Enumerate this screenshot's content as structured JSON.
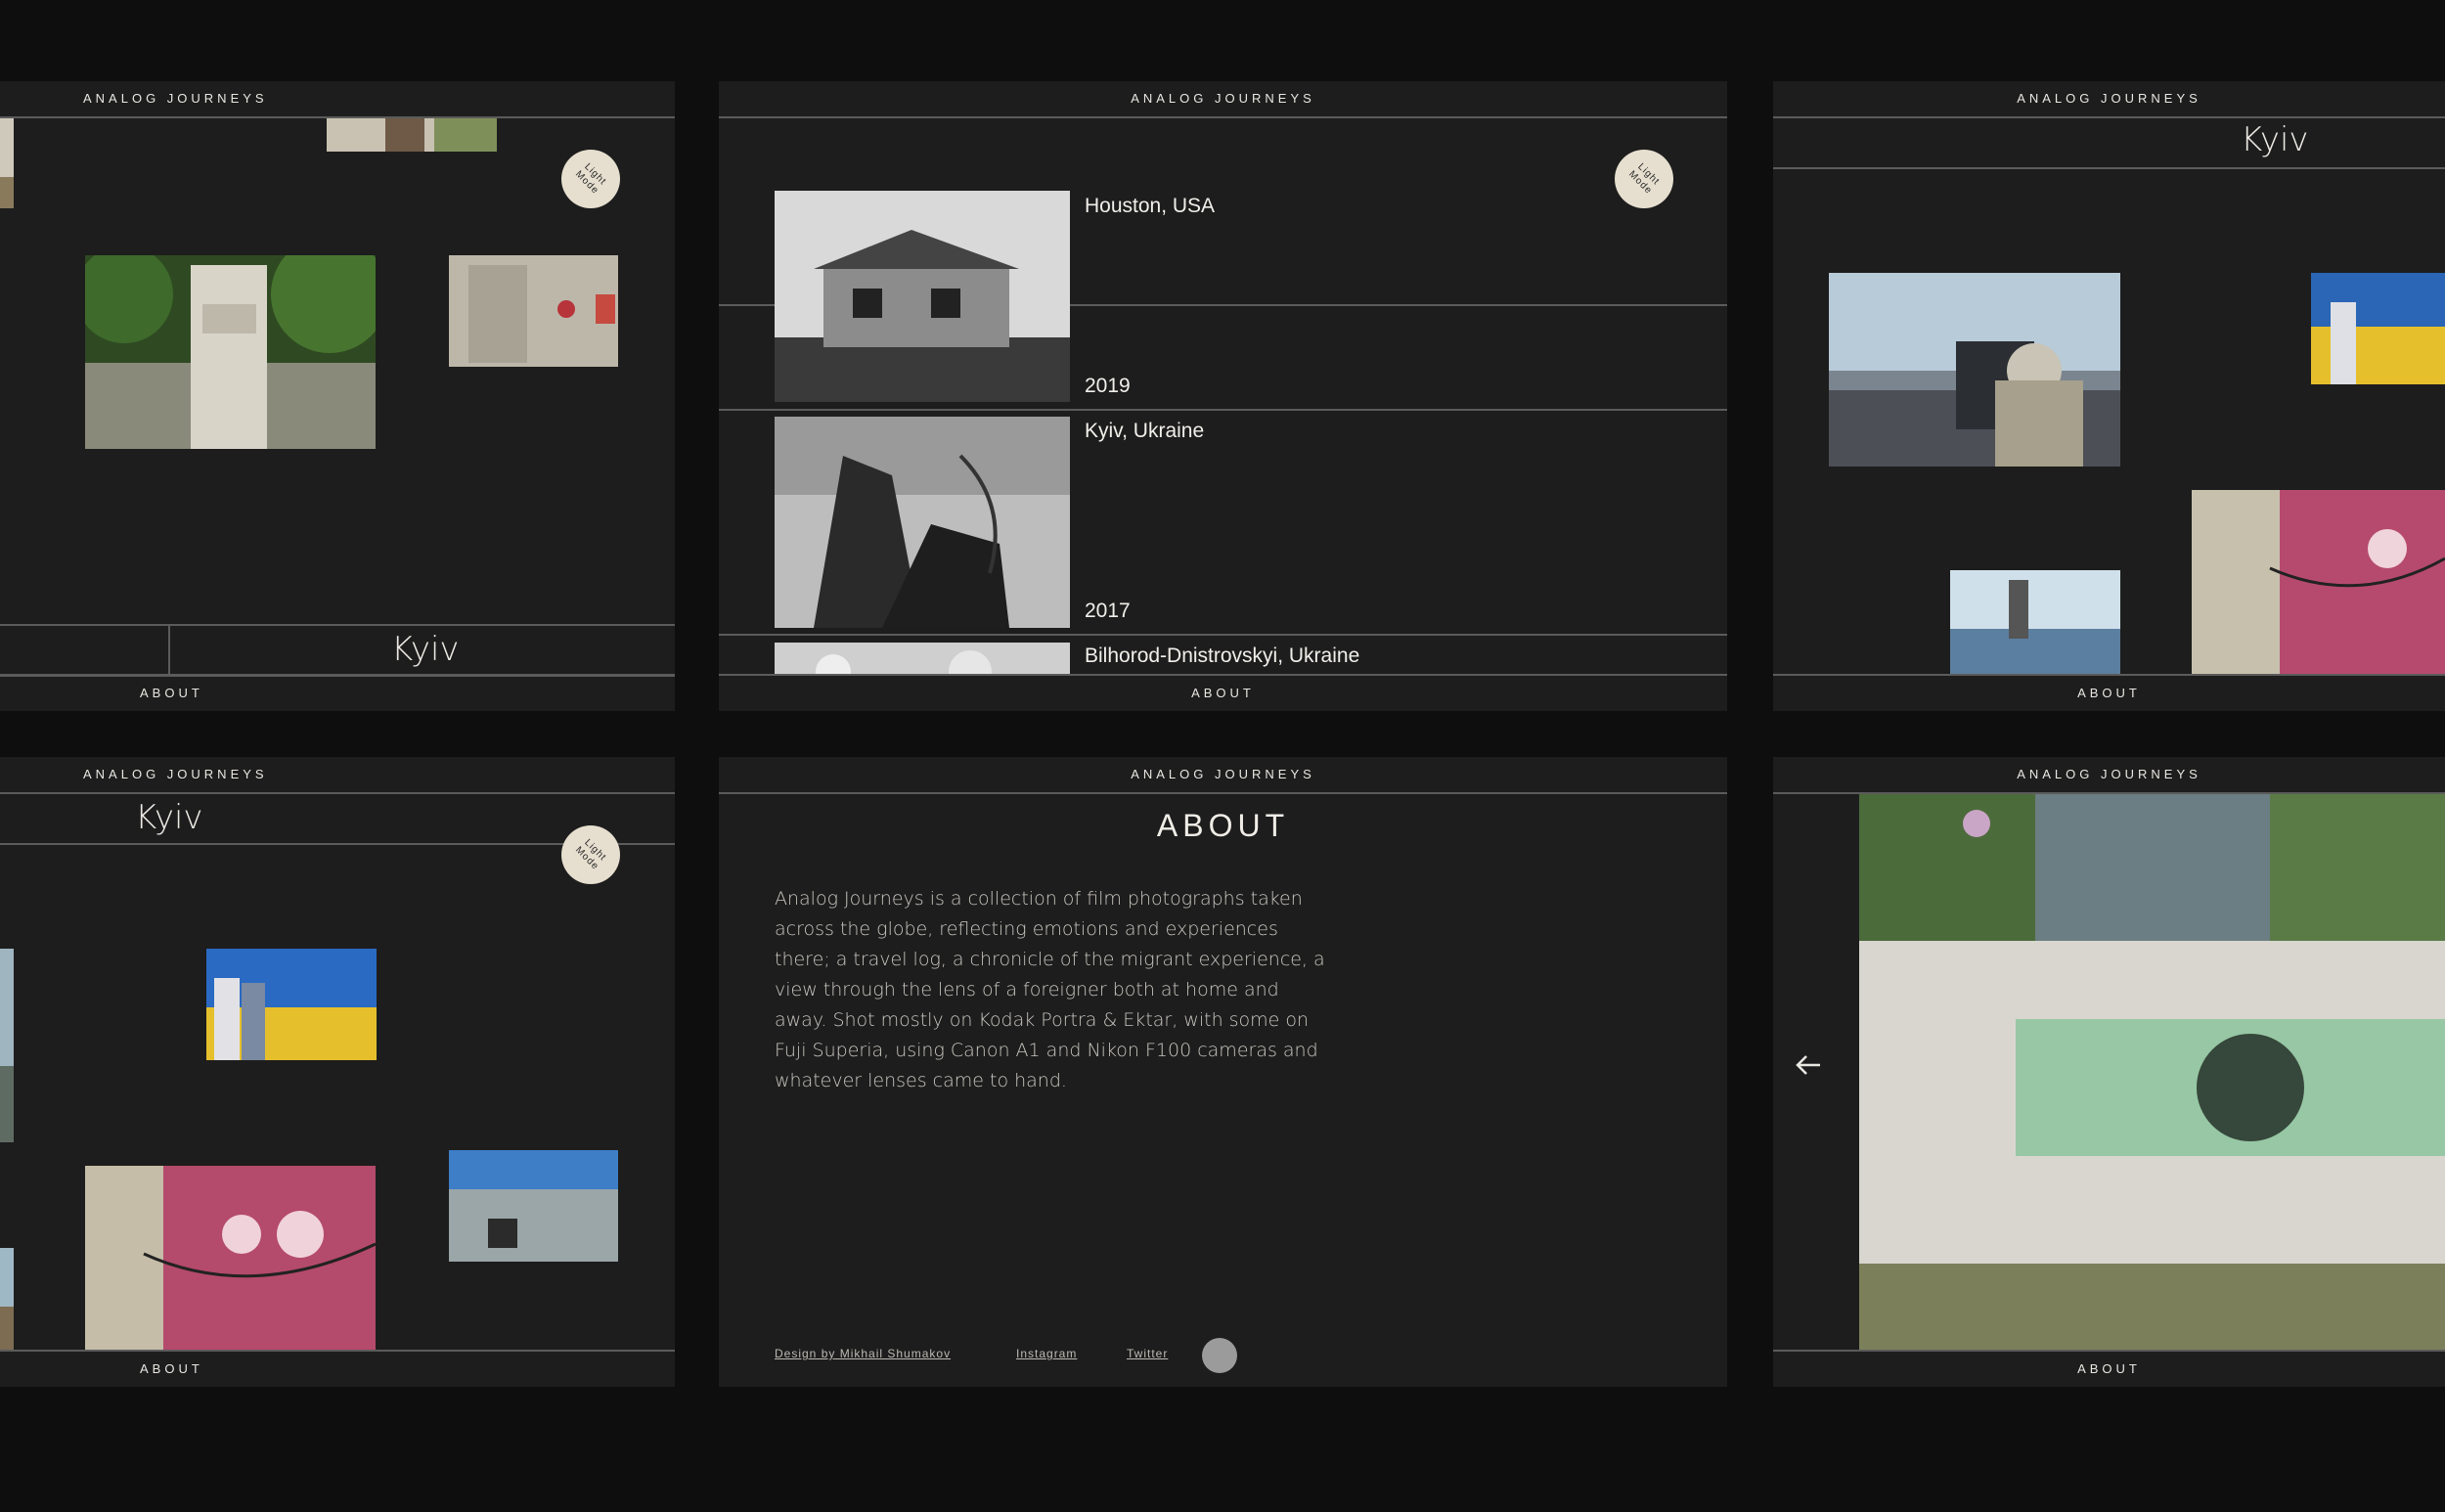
{
  "brand": "ANALOG JOURNEYS",
  "footer_link": "ABOUT",
  "toggle_label": "Light Mode",
  "city_title": "Kyiv",
  "trips": [
    {
      "location": "Houston, USA",
      "year": "2019"
    },
    {
      "location": "Kyiv, Ukraine",
      "year": "2017"
    },
    {
      "location": "Bilhorod-Dnistrovskyi, Ukraine",
      "year": ""
    }
  ],
  "about": {
    "title": "ABOUT",
    "body": "Analog Journeys is a collection of film photographs taken across the globe, reflecting emotions and experiences there; a travel log, a chronicle of the migrant experience, a view through the lens of a foreigner both at home and away. Shot mostly on Kodak Portra & Ektar, with some on Fuji Superia, using Canon A1 and Nikon F100 cameras and whatever lenses came to hand.",
    "links": {
      "design": "Design by Mikhail Shumakov",
      "instagram": "Instagram",
      "twitter": "Twitter"
    }
  },
  "icons": {
    "back": "arrow-left-icon",
    "theme": "light-mode-toggle-icon"
  }
}
